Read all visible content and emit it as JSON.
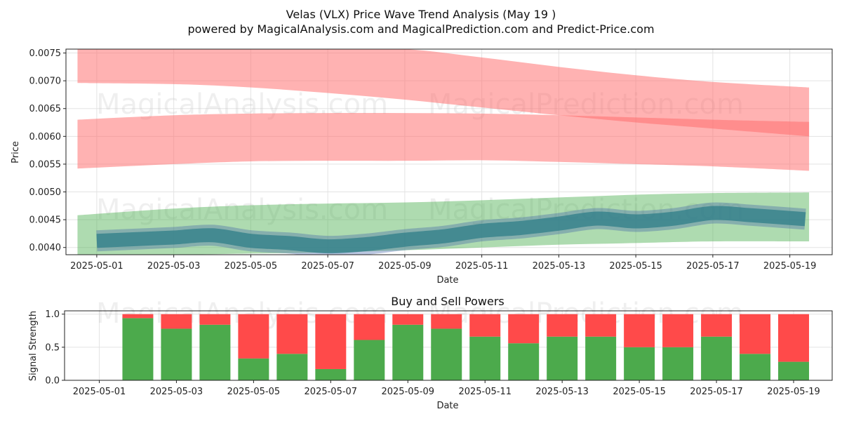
{
  "title": "Velas (VLX) Price Wave Trend Analysis (May 19 )",
  "subtitle": "powered by MagicalAnalysis.com and MagicalPrediction.com and Predict-Price.com",
  "watermarks": [
    "MagicalAnalysis.com",
    "MagicalPrediction.com"
  ],
  "colors": {
    "resistance_band": "#ff6b6b",
    "support_band": "#4caf50",
    "price_wave": "#3b5fa8",
    "price_wave_teal": "#2e7d88",
    "buy": "#4caa4c",
    "sell": "#ff4a4a"
  },
  "chart_data": [
    {
      "type": "area",
      "panel": "price",
      "xlabel": "Date",
      "ylabel": "Price",
      "x_ticks": [
        "2025-05-01",
        "2025-05-03",
        "2025-05-05",
        "2025-05-07",
        "2025-05-09",
        "2025-05-11",
        "2025-05-13",
        "2025-05-15",
        "2025-05-17",
        "2025-05-19"
      ],
      "y_ticks": [
        "0.0040",
        "0.0045",
        "0.0050",
        "0.0055",
        "0.0060",
        "0.0065",
        "0.0070",
        "0.0075"
      ],
      "ylim": [
        0.00387,
        0.00757
      ],
      "xlim": [
        "2025-04-30.2",
        "2025-05-20.1"
      ],
      "bands": [
        {
          "role": "upper red band",
          "color": "red",
          "x": [
            "2025-04-30.5",
            "2025-05-03",
            "2025-05-05",
            "2025-05-07",
            "2025-05-09",
            "2025-05-11",
            "2025-05-13",
            "2025-05-15",
            "2025-05-17",
            "2025-05-19.5"
          ],
          "lower": [
            0.00696,
            0.00694,
            0.00688,
            0.00678,
            0.00666,
            0.00652,
            0.00638,
            0.00625,
            0.00614,
            0.006
          ],
          "upper": [
            0.00757,
            0.00757,
            0.00757,
            0.00757,
            0.00757,
            0.00742,
            0.00725,
            0.0071,
            0.00698,
            0.00688
          ]
        },
        {
          "role": "lower red band",
          "color": "red",
          "x": [
            "2025-04-30.5",
            "2025-05-03",
            "2025-05-05",
            "2025-05-07",
            "2025-05-09",
            "2025-05-11",
            "2025-05-13",
            "2025-05-15",
            "2025-05-17",
            "2025-05-19.5"
          ],
          "lower": [
            0.00542,
            0.0055,
            0.00555,
            0.00556,
            0.00556,
            0.00557,
            0.00554,
            0.0055,
            0.00546,
            0.00538
          ],
          "upper": [
            0.0063,
            0.00638,
            0.00641,
            0.00642,
            0.00642,
            0.00641,
            0.00638,
            0.00634,
            0.0063,
            0.00626
          ]
        },
        {
          "role": "green band",
          "color": "green",
          "x": [
            "2025-04-30.5",
            "2025-05-03",
            "2025-05-05",
            "2025-05-07",
            "2025-05-09",
            "2025-05-11",
            "2025-05-13",
            "2025-05-15",
            "2025-05-17",
            "2025-05-19.5"
          ],
          "lower": [
            0.00387,
            0.00387,
            0.00389,
            0.00391,
            0.00395,
            0.004,
            0.00405,
            0.00408,
            0.00411,
            0.00411
          ],
          "upper": [
            0.00458,
            0.0047,
            0.00476,
            0.00479,
            0.00481,
            0.00485,
            0.0049,
            0.00495,
            0.00498,
            0.00499
          ]
        }
      ],
      "series": [
        {
          "color": "blue",
          "x": [
            "2025-05-01",
            "2025-05-02",
            "2025-05-03",
            "2025-05-04",
            "2025-05-05",
            "2025-05-06",
            "2025-05-07",
            "2025-05-08",
            "2025-05-09",
            "2025-05-10",
            "2025-05-11",
            "2025-05-12",
            "2025-05-13",
            "2025-05-14",
            "2025-05-15",
            "2025-05-16",
            "2025-05-17",
            "2025-05-18",
            "2025-05-19.4"
          ],
          "y": [
            0.00412,
            0.00415,
            0.00418,
            0.00422,
            0.00412,
            0.00408,
            0.00402,
            0.00406,
            0.00414,
            0.0042,
            0.0043,
            0.00435,
            0.00443,
            0.00452,
            0.00447,
            0.00452,
            0.00462,
            0.00458,
            0.00451
          ]
        }
      ]
    },
    {
      "type": "bar",
      "panel": "signal",
      "title": "Buy and Sell Powers",
      "xlabel": "Date",
      "ylabel": "Signal Strength",
      "ylim": [
        0.0,
        1.05
      ],
      "y_ticks": [
        "0.0",
        "0.5",
        "1.0"
      ],
      "x_ticks": [
        "2025-05-01",
        "2025-05-03",
        "2025-05-05",
        "2025-05-07",
        "2025-05-09",
        "2025-05-11",
        "2025-05-13",
        "2025-05-15",
        "2025-05-17",
        "2025-05-19"
      ],
      "xlim": [
        "2025-04-30.1",
        "2025-05-20.0"
      ],
      "categories": [
        "2025-05-02",
        "2025-05-03",
        "2025-05-04",
        "2025-05-05",
        "2025-05-06",
        "2025-05-07",
        "2025-05-08",
        "2025-05-09",
        "2025-05-10",
        "2025-05-11",
        "2025-05-12",
        "2025-05-13",
        "2025-05-14",
        "2025-05-15",
        "2025-05-16",
        "2025-05-17",
        "2025-05-18",
        "2025-05-19"
      ],
      "series": [
        {
          "name": "Buy",
          "color": "green",
          "values": [
            0.94,
            0.78,
            0.84,
            0.33,
            0.4,
            0.17,
            0.61,
            0.84,
            0.78,
            0.66,
            0.56,
            0.66,
            0.66,
            0.5,
            0.5,
            0.66,
            0.4,
            0.28
          ]
        },
        {
          "name": "Sell",
          "color": "red",
          "values": [
            0.06,
            0.22,
            0.16,
            0.67,
            0.6,
            0.83,
            0.39,
            0.16,
            0.22,
            0.34,
            0.44,
            0.34,
            0.34,
            0.5,
            0.5,
            0.34,
            0.6,
            0.72
          ]
        }
      ]
    }
  ]
}
